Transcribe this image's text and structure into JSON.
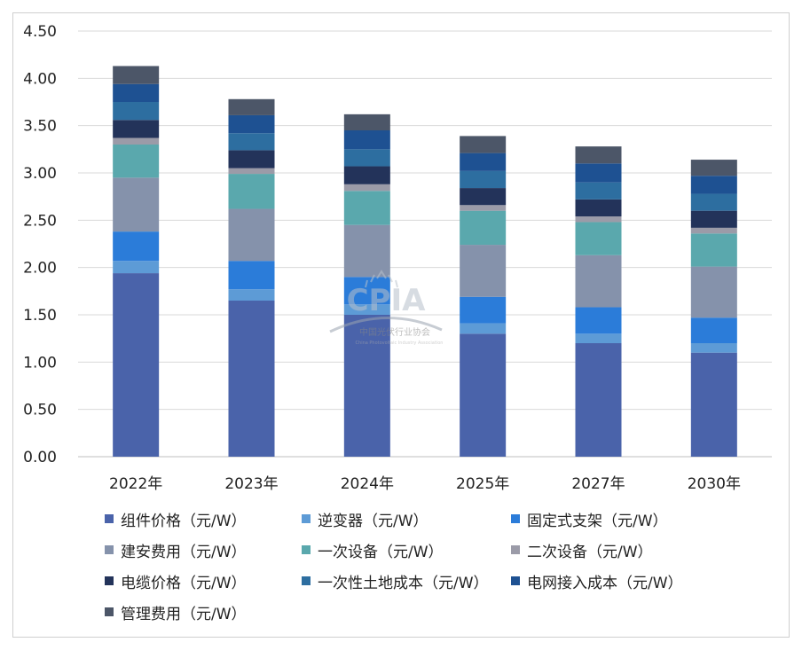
{
  "chart_data": {
    "type": "bar",
    "stacked": true,
    "title": "",
    "xlabel": "",
    "ylabel": "",
    "ylim": [
      0,
      4.5
    ],
    "yticks": [
      "0.00",
      "0.50",
      "1.00",
      "1.50",
      "2.00",
      "2.50",
      "3.00",
      "3.50",
      "4.00",
      "4.50"
    ],
    "grid": true,
    "legend_position": "bottom",
    "categories": [
      "2022年",
      "2023年",
      "2024年",
      "2025年",
      "2027年",
      "2030年"
    ],
    "series": [
      {
        "name": "组件价格（元/W）",
        "color": "#4a63aa",
        "values": [
          1.94,
          1.65,
          1.5,
          1.3,
          1.2,
          1.1
        ]
      },
      {
        "name": "逆变器（元/W）",
        "color": "#5d9bd6",
        "values": [
          0.13,
          0.12,
          0.11,
          0.11,
          0.1,
          0.1
        ]
      },
      {
        "name": "固定式支架（元/W）",
        "color": "#2b7cd9",
        "values": [
          0.31,
          0.3,
          0.29,
          0.28,
          0.28,
          0.27
        ]
      },
      {
        "name": "建安费用（元/W）",
        "color": "#8592ab",
        "values": [
          0.57,
          0.55,
          0.55,
          0.55,
          0.55,
          0.54
        ]
      },
      {
        "name": "一次设备（元/W）",
        "color": "#5aa8ad",
        "values": [
          0.35,
          0.37,
          0.36,
          0.36,
          0.35,
          0.35
        ]
      },
      {
        "name": "二次设备（元/W）",
        "color": "#9b9ba8",
        "values": [
          0.07,
          0.06,
          0.07,
          0.06,
          0.06,
          0.06
        ]
      },
      {
        "name": "电缆价格（元/W）",
        "color": "#23335a",
        "values": [
          0.19,
          0.19,
          0.19,
          0.18,
          0.18,
          0.18
        ]
      },
      {
        "name": "一次性土地成本（元/W）",
        "color": "#2d6ea0",
        "values": [
          0.19,
          0.18,
          0.18,
          0.18,
          0.18,
          0.18
        ]
      },
      {
        "name": "电网接入成本（元/W）",
        "color": "#1e5192",
        "values": [
          0.19,
          0.19,
          0.2,
          0.19,
          0.2,
          0.19
        ]
      },
      {
        "name": "管理费用（元/W）",
        "color": "#4c5668",
        "values": [
          0.19,
          0.17,
          0.17,
          0.18,
          0.18,
          0.17
        ]
      }
    ]
  },
  "watermark": {
    "logo_text": "CPIA",
    "org_name": "中国光伏行业协会",
    "org_name_en": "China Photovoltaic Industry Association"
  }
}
